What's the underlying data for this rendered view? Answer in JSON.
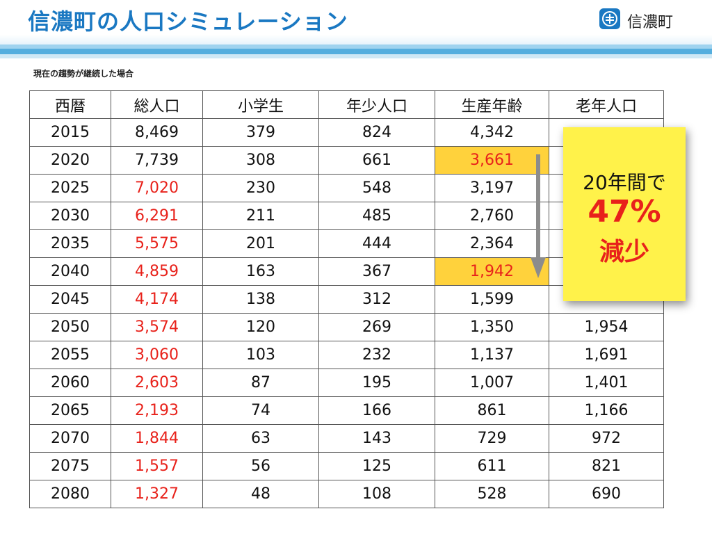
{
  "header": {
    "title": "信濃町の人口シミュレーション",
    "logo_text": "信濃町",
    "logo_icon": "town-emblem-icon"
  },
  "subtitle": "現在の趨勢が継続した場合",
  "table": {
    "headers": [
      "西暦",
      "総人口",
      "小学生",
      "年少人口",
      "生産年齢",
      "老年人口"
    ],
    "rows": [
      [
        "2015",
        "8,469",
        "379",
        "824",
        "4,342",
        ""
      ],
      [
        "2020",
        "7,739",
        "308",
        "661",
        "3,661",
        ""
      ],
      [
        "2025",
        "7,020",
        "230",
        "548",
        "3,197",
        ""
      ],
      [
        "2030",
        "6,291",
        "211",
        "485",
        "2,760",
        ""
      ],
      [
        "2035",
        "5,575",
        "201",
        "444",
        "2,364",
        ""
      ],
      [
        "2040",
        "4,859",
        "163",
        "367",
        "1,942",
        ""
      ],
      [
        "2045",
        "4,174",
        "138",
        "312",
        "1,599",
        ""
      ],
      [
        "2050",
        "3,574",
        "120",
        "269",
        "1,350",
        "1,954"
      ],
      [
        "2055",
        "3,060",
        "103",
        "232",
        "1,137",
        "1,691"
      ],
      [
        "2060",
        "2,603",
        "87",
        "195",
        "1,007",
        "1,401"
      ],
      [
        "2065",
        "2,193",
        "74",
        "166",
        "861",
        "1,166"
      ],
      [
        "2070",
        "1,844",
        "63",
        "143",
        "729",
        "972"
      ],
      [
        "2075",
        "1,557",
        "56",
        "125",
        "611",
        "821"
      ],
      [
        "2080",
        "1,327",
        "48",
        "108",
        "528",
        "690"
      ]
    ]
  },
  "callout": {
    "line1": "20年間で",
    "line2": "47%",
    "line3": "減少"
  },
  "colors": {
    "title": "#1a78c2",
    "accent_red": "#e8221b",
    "highlight": "#ffd23c",
    "callout_bg": "#fff24a",
    "band": "#55aede"
  }
}
